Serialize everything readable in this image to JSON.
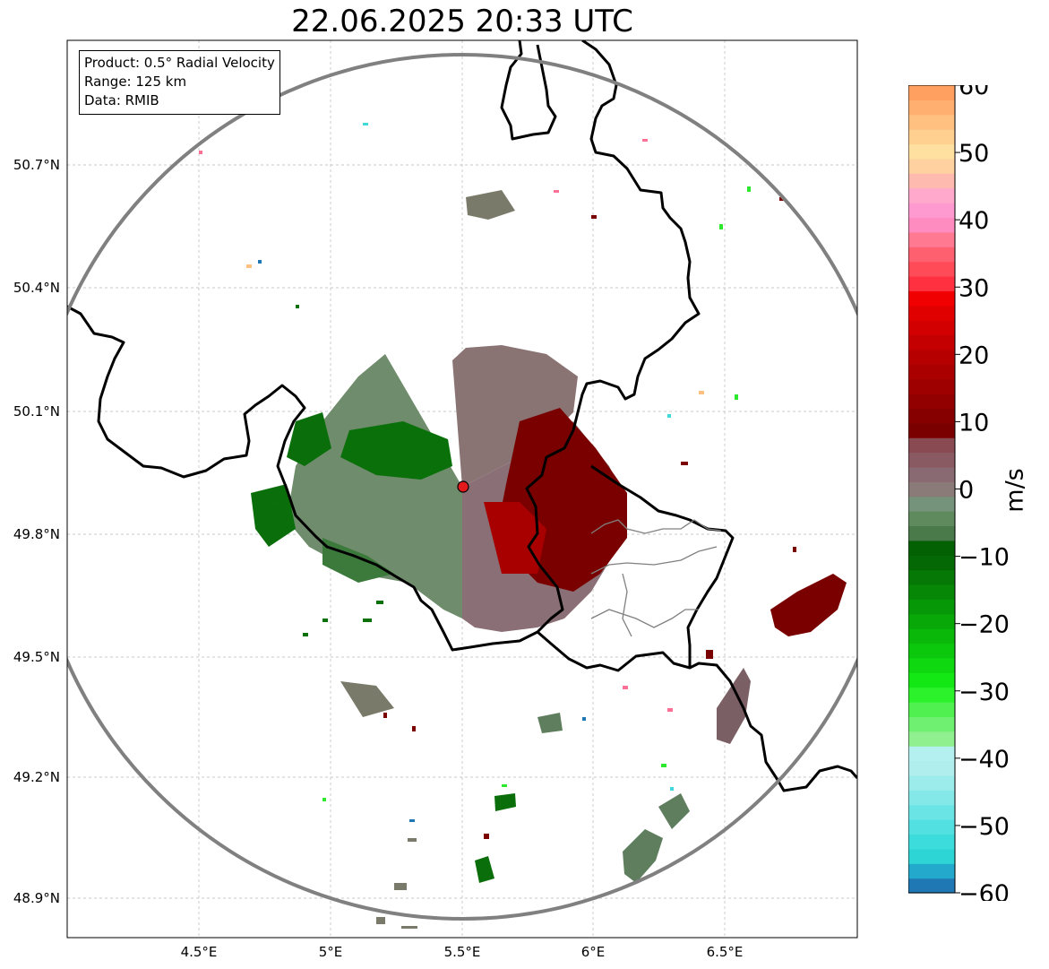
{
  "title": "22.06.2025 20:33 UTC",
  "info": {
    "product": "Product: 0.5° Radial Velocity",
    "range": "Range: 125 km",
    "data": "Data: RMIB"
  },
  "map": {
    "lon_ticks": [
      "4.5°E",
      "5°E",
      "5.5°E",
      "6°E",
      "6.5°E"
    ],
    "lat_ticks": [
      "50.7°N",
      "50.4°N",
      "50.1°N",
      "49.8°N",
      "49.5°N",
      "49.2°N",
      "48.9°N"
    ],
    "radar_site_color": "#e31a1c",
    "range_ring_color": "#808080",
    "border_color": "#000000"
  },
  "colorbar": {
    "unit": "m/s",
    "ticks": [
      "60",
      "50",
      "40",
      "30",
      "20",
      "10",
      "0",
      "−10",
      "−20",
      "−30",
      "−40",
      "−50",
      "−60"
    ],
    "vmin": -60,
    "vmax": 60,
    "colors": [
      "#1f78b4",
      "#23a9cc",
      "#2ed5d5",
      "#3cdcdc",
      "#52e0e0",
      "#6ae4e4",
      "#84e8e8",
      "#9cecec",
      "#b0eeee",
      "#b4f0f0",
      "#90f090",
      "#70f070",
      "#50f050",
      "#2cf22c",
      "#14e814",
      "#10d810",
      "#0cc80c",
      "#0ab80a",
      "#08a808",
      "#079807",
      "#068806",
      "#057805",
      "#046804",
      "#036003",
      "#4a7a4a",
      "#5e8a5e",
      "#74937a",
      "#8a7a78",
      "#8a6a72",
      "#8a5a62",
      "#8a4a52",
      "#7a0000",
      "#860000",
      "#920000",
      "#9e0000",
      "#aa0000",
      "#b60000",
      "#c40000",
      "#d20000",
      "#e00000",
      "#f00000",
      "#ff3040",
      "#ff4a58",
      "#ff6070",
      "#ff7a90",
      "#ff8cc0",
      "#ff9ad0",
      "#ffaacc",
      "#ffbab0",
      "#ffd0a0",
      "#ffe0a0",
      "#ffd090",
      "#ffc080",
      "#ffb070",
      "#ffa060"
    ]
  }
}
